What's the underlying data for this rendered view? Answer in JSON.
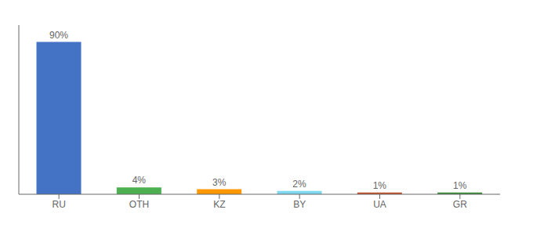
{
  "chart_data": {
    "type": "bar",
    "categories": [
      "RU",
      "OTH",
      "KZ",
      "BY",
      "UA",
      "GR"
    ],
    "values": [
      90,
      4,
      3,
      2,
      1,
      1
    ],
    "value_labels": [
      "90%",
      "4%",
      "3%",
      "2%",
      "1%",
      "1%"
    ],
    "colors": [
      "#4472c4",
      "#4caf50",
      "#ff9800",
      "#80d8f0",
      "#c0522a",
      "#3d8a3d"
    ],
    "ylim": [
      0,
      100
    ],
    "data_labels": true,
    "tick_labels": "x"
  }
}
